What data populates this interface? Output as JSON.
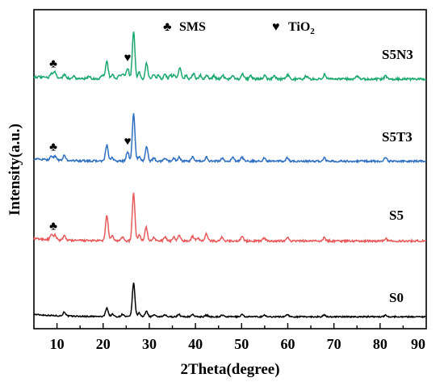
{
  "chart_data": {
    "type": "line",
    "title": "",
    "xlabel": "2Theta(degree)",
    "ylabel": "Intensity(a.u.)",
    "xlim": [
      5,
      90
    ],
    "x_ticks": [
      10,
      20,
      30,
      40,
      50,
      60,
      70,
      80,
      90
    ],
    "y_ticks_shown": false,
    "grid": false,
    "legend": {
      "placement": "top-center",
      "items": [
        {
          "symbol": "♣",
          "label": "SMS"
        },
        {
          "symbol": "♥",
          "label": "TiO",
          "subscript": "2"
        }
      ]
    },
    "series": [
      {
        "name": "S0",
        "color": "#000000",
        "baseline": 0.0,
        "noise": 0.008,
        "peaks": [
          [
            11.6,
            0.05
          ],
          [
            20.8,
            0.11
          ],
          [
            22.0,
            0.03
          ],
          [
            24.2,
            0.03
          ],
          [
            26.6,
            0.42
          ],
          [
            27.8,
            0.05
          ],
          [
            29.4,
            0.07
          ],
          [
            31.0,
            0.02
          ],
          [
            33.4,
            0.02
          ],
          [
            36.4,
            0.03
          ],
          [
            39.4,
            0.03
          ],
          [
            42.4,
            0.02
          ],
          [
            45.8,
            0.02
          ],
          [
            50.1,
            0.03
          ],
          [
            54.9,
            0.02
          ],
          [
            59.9,
            0.03
          ],
          [
            67.9,
            0.02
          ],
          [
            81.2,
            0.02
          ]
        ]
      },
      {
        "name": "S5",
        "color": "#e8595a",
        "baseline": 0.95,
        "noise": 0.012,
        "peaks": [
          [
            8.8,
            0.06
          ],
          [
            9.6,
            0.06
          ],
          [
            11.6,
            0.05
          ],
          [
            20.8,
            0.32
          ],
          [
            22.0,
            0.06
          ],
          [
            24.2,
            0.05
          ],
          [
            26.6,
            0.6
          ],
          [
            27.8,
            0.08
          ],
          [
            29.3,
            0.18
          ],
          [
            31.0,
            0.05
          ],
          [
            33.4,
            0.05
          ],
          [
            35.3,
            0.05
          ],
          [
            36.5,
            0.07
          ],
          [
            39.4,
            0.06
          ],
          [
            40.5,
            0.04
          ],
          [
            42.4,
            0.09
          ],
          [
            45.8,
            0.05
          ],
          [
            50.1,
            0.06
          ],
          [
            54.9,
            0.04
          ],
          [
            59.9,
            0.05
          ],
          [
            67.9,
            0.04
          ],
          [
            81.2,
            0.03
          ]
        ]
      },
      {
        "name": "S5T3",
        "color": "#2f6fc2",
        "baseline": 1.95,
        "noise": 0.012,
        "peaks": [
          [
            8.8,
            0.05
          ],
          [
            9.6,
            0.05
          ],
          [
            11.6,
            0.06
          ],
          [
            20.8,
            0.2
          ],
          [
            22.0,
            0.04
          ],
          [
            25.3,
            0.12
          ],
          [
            26.6,
            0.6
          ],
          [
            27.8,
            0.06
          ],
          [
            29.4,
            0.18
          ],
          [
            31.0,
            0.04
          ],
          [
            33.4,
            0.04
          ],
          [
            35.3,
            0.04
          ],
          [
            36.5,
            0.05
          ],
          [
            39.4,
            0.05
          ],
          [
            42.4,
            0.05
          ],
          [
            45.8,
            0.04
          ],
          [
            48.1,
            0.05
          ],
          [
            50.1,
            0.05
          ],
          [
            54.9,
            0.04
          ],
          [
            59.9,
            0.04
          ],
          [
            67.9,
            0.04
          ],
          [
            81.2,
            0.05
          ]
        ]
      },
      {
        "name": "S5N3",
        "color": "#1aa86f",
        "baseline": 2.98,
        "noise": 0.014,
        "peaks": [
          [
            8.8,
            0.06
          ],
          [
            9.6,
            0.08
          ],
          [
            11.6,
            0.05
          ],
          [
            13.6,
            0.03
          ],
          [
            17.0,
            0.03
          ],
          [
            19.8,
            0.05
          ],
          [
            20.8,
            0.22
          ],
          [
            22.0,
            0.06
          ],
          [
            23.6,
            0.05
          ],
          [
            24.3,
            0.06
          ],
          [
            25.3,
            0.14
          ],
          [
            26.6,
            0.6
          ],
          [
            27.8,
            0.08
          ],
          [
            29.4,
            0.2
          ],
          [
            31.0,
            0.06
          ],
          [
            32.0,
            0.05
          ],
          [
            33.4,
            0.06
          ],
          [
            34.6,
            0.05
          ],
          [
            35.4,
            0.05
          ],
          [
            36.6,
            0.15
          ],
          [
            38.0,
            0.05
          ],
          [
            39.6,
            0.07
          ],
          [
            41.0,
            0.05
          ],
          [
            42.5,
            0.05
          ],
          [
            44.0,
            0.04
          ],
          [
            45.9,
            0.05
          ],
          [
            48.1,
            0.05
          ],
          [
            50.2,
            0.06
          ],
          [
            52.0,
            0.04
          ],
          [
            55.0,
            0.05
          ],
          [
            57.0,
            0.04
          ],
          [
            60.0,
            0.05
          ],
          [
            64.0,
            0.04
          ],
          [
            68.0,
            0.06
          ],
          [
            75.0,
            0.04
          ],
          [
            81.2,
            0.04
          ]
        ]
      }
    ],
    "annotations": [
      {
        "symbol": "♣",
        "x": 9.2,
        "series": "S5N3"
      },
      {
        "symbol": "♥",
        "x": 25.3,
        "series": "S5N3"
      },
      {
        "symbol": "♣",
        "x": 9.2,
        "series": "S5T3"
      },
      {
        "symbol": "♥",
        "x": 25.3,
        "series": "S5T3"
      },
      {
        "symbol": "♣",
        "x": 9.2,
        "series": "S5"
      }
    ]
  }
}
